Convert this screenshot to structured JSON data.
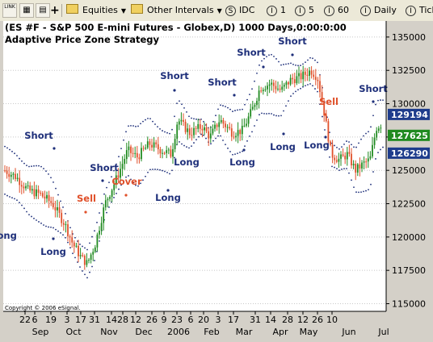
{
  "toolbar": {
    "link_label": "LINK",
    "equities_label": "Equities",
    "intervals_label": "Other Intervals",
    "symbol_label": "IDC",
    "s_icon": "S",
    "i_icon": "I",
    "int1": "1",
    "int5": "5",
    "int60": "60",
    "daily": "Daily",
    "tick": "Tick"
  },
  "chart_data": {
    "type": "candlestick",
    "title": "(ES #F - S&P 500 E-mini Futures - Globex,D) 1000 Days,0:00:0:00",
    "subtitle": "Adaptive Price Zone Strategy",
    "copyright": "Copyright © 2006 eSignal.",
    "ylim": [
      1148,
      1362
    ],
    "y_ticks": [
      {
        "value": 1150,
        "label": "115000"
      },
      {
        "value": 1175,
        "label": "117500"
      },
      {
        "value": 1200,
        "label": "120000"
      },
      {
        "value": 1225,
        "label": "122500"
      },
      {
        "value": 1250,
        "label": "125000"
      },
      {
        "value": 1275,
        "label": "127500"
      },
      {
        "value": 1300,
        "label": "130000"
      },
      {
        "value": 1325,
        "label": "132500"
      },
      {
        "value": 1350,
        "label": "135000"
      }
    ],
    "price_badges": [
      {
        "value": 1291.94,
        "label": "129194",
        "color": "#1e3c8c"
      },
      {
        "value": 1276.25,
        "label": "127625",
        "color": "#208a20"
      },
      {
        "value": 1262.9,
        "label": "126290",
        "color": "#1e3c8c"
      }
    ],
    "x_days": [
      "22",
      "6",
      "19",
      "3",
      "17",
      "31",
      "14",
      "28",
      "12",
      "26",
      "9",
      "23",
      "6",
      "20",
      "3",
      "17",
      "31",
      "14",
      "28",
      "12",
      "26",
      "10"
    ],
    "x_months": [
      "Sep",
      "Oct",
      "Nov",
      "Dec",
      "2006",
      "Feb",
      "Mar",
      "Apr",
      "May",
      "Jun",
      "Jul"
    ],
    "signals": [
      {
        "label": "Short",
        "color": "#1e2f7a"
      },
      {
        "label": "Long",
        "color": "#1e2f7a"
      },
      {
        "label": "Sell",
        "color": "#e0502a"
      },
      {
        "label": "Long",
        "color": "#1e2f7a"
      },
      {
        "label": "Short",
        "color": "#1e2f7a"
      },
      {
        "label": "Cover",
        "color": "#e0502a"
      },
      {
        "label": "Long",
        "color": "#1e2f7a"
      },
      {
        "label": "Short",
        "color": "#1e2f7a"
      },
      {
        "label": "Long",
        "color": "#1e2f7a"
      },
      {
        "label": "Short",
        "color": "#1e2f7a"
      },
      {
        "label": "Long",
        "color": "#1e2f7a"
      },
      {
        "label": "Short",
        "color": "#1e2f7a"
      },
      {
        "label": "Long",
        "color": "#1e2f7a"
      },
      {
        "label": "Short",
        "color": "#1e2f7a"
      },
      {
        "label": "Long",
        "color": "#1e2f7a"
      },
      {
        "label": "Sell",
        "color": "#e0502a"
      },
      {
        "label": "Short",
        "color": "#1e2f7a"
      }
    ],
    "band_color": "#1e2f7a",
    "up_color": "#208a20",
    "down_color": "#e0502a"
  }
}
